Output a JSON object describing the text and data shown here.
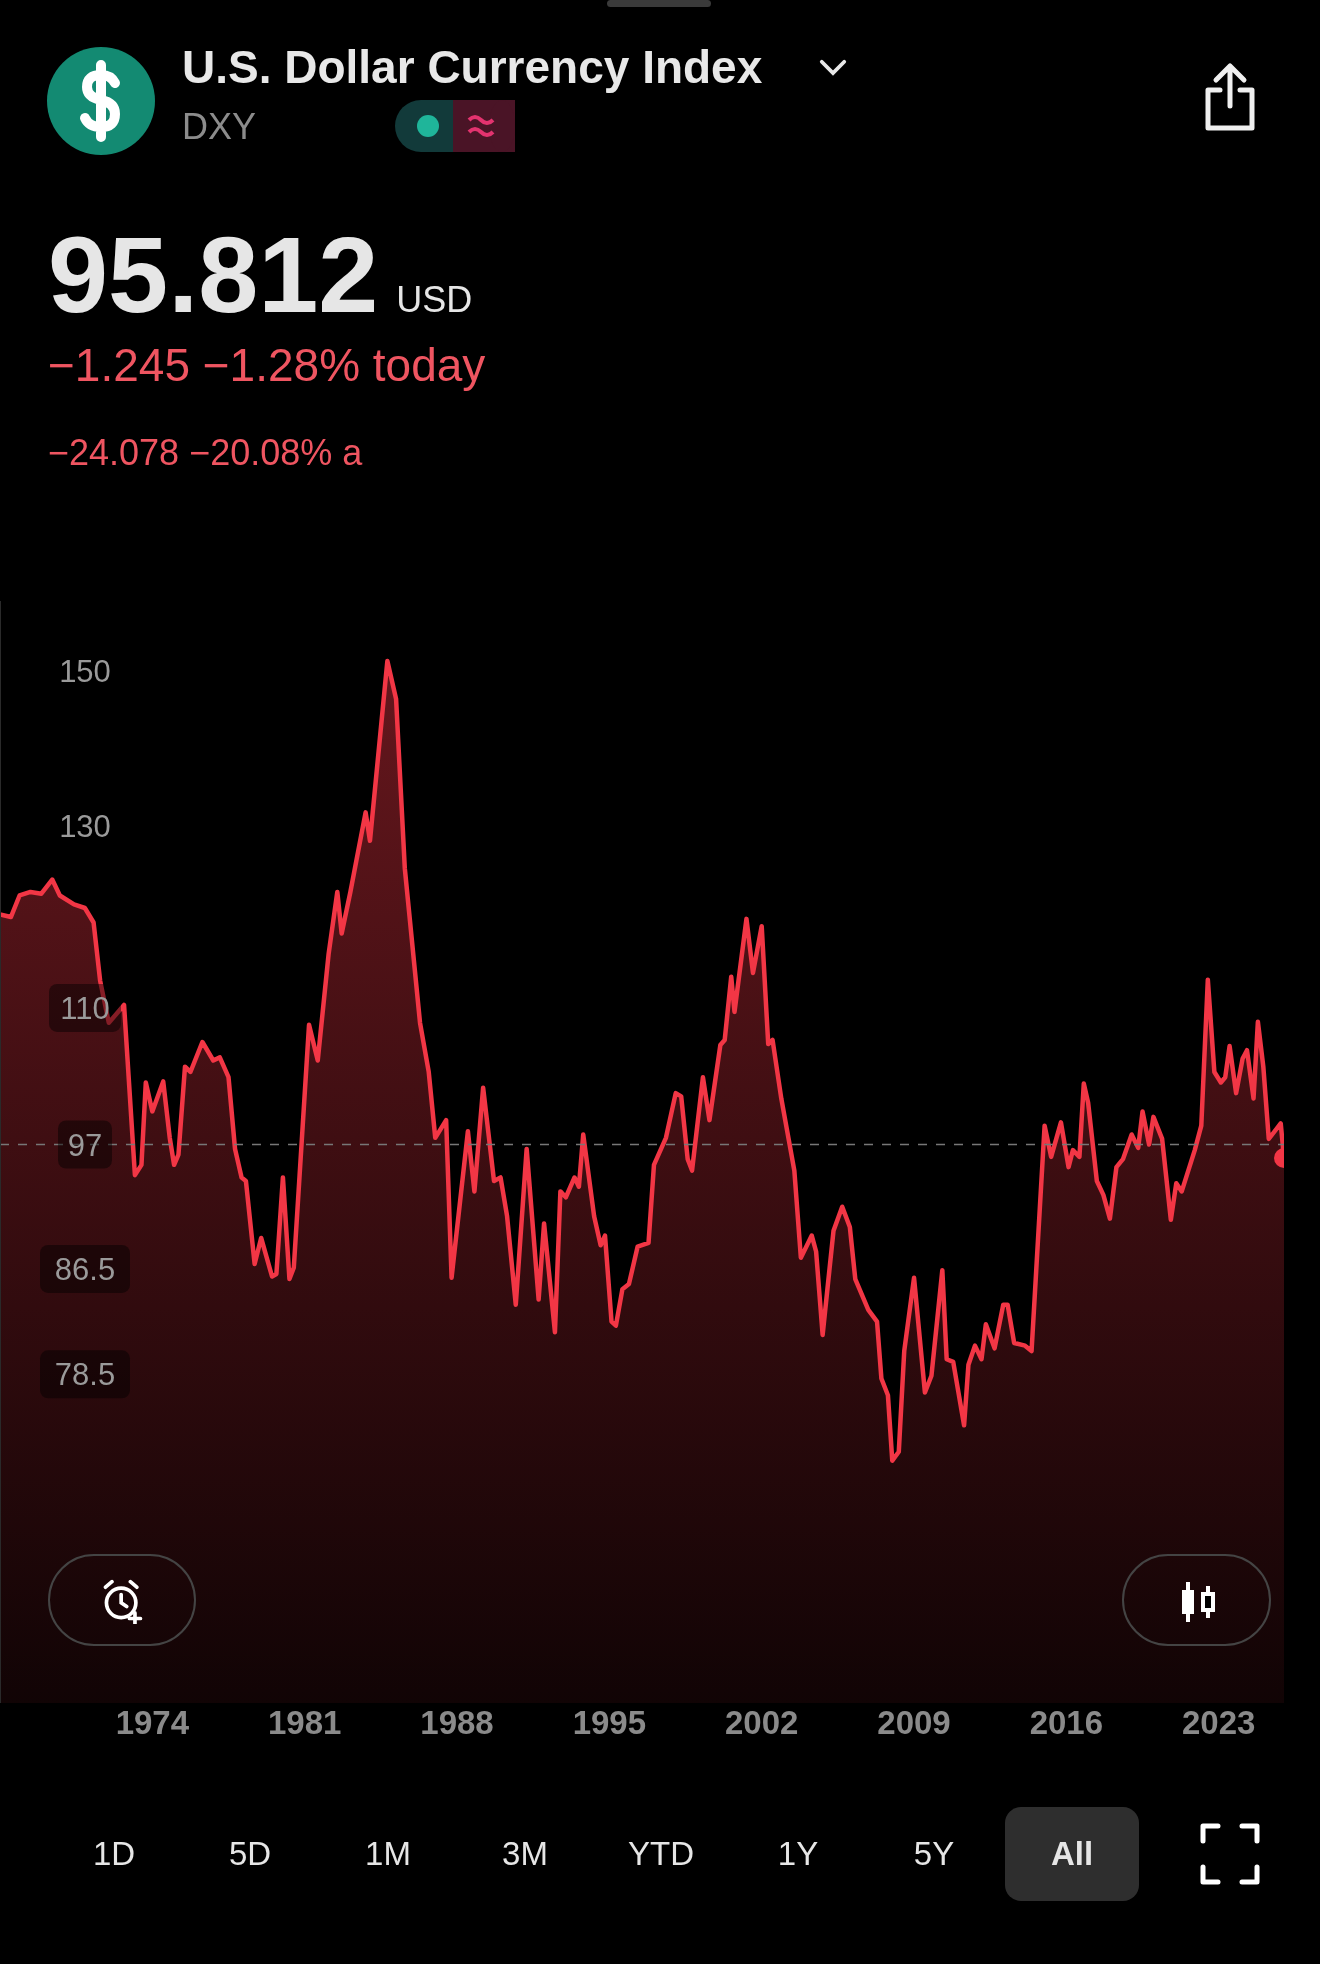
{
  "chart_data": {
    "type": "area",
    "title": "U.S. Dollar Currency Index",
    "subtitle": "DXY",
    "annotations": [
      "95.812",
      "USD",
      "−1.245 −1.28% today",
      "−24.078 −20.08% a",
      "1D",
      "5D",
      "1M",
      "3M",
      "YTD",
      "1Y",
      "5Y",
      "All"
    ],
    "x": [
      1967.0,
      1967.5,
      1967.9,
      1968.4,
      1968.9,
      1969.4,
      1969.75,
      1970.4,
      1970.9,
      1971.3,
      1971.6,
      1972.0,
      1972.7,
      1973.2,
      1973.5,
      1973.7,
      1974.0,
      1974.5,
      1974.8,
      1975.0,
      1975.2,
      1975.5,
      1975.75,
      1976.3,
      1976.8,
      1977.1,
      1977.5,
      1977.8,
      1978.1,
      1978.3,
      1978.7,
      1979.0,
      1979.5,
      1979.7,
      1980.0,
      1980.3,
      1980.5,
      1981.2,
      1981.6,
      1982.1,
      1982.5,
      1982.7,
      1983.1,
      1983.8,
      1984.0,
      1984.8,
      1985.2,
      1985.6,
      1986.3,
      1986.7,
      1987.0,
      1987.5,
      1987.75,
      1988.5,
      1988.8,
      1989.2,
      1989.7,
      1990.0,
      1990.3,
      1990.7,
      1991.2,
      1991.75,
      1992.0,
      1992.5,
      1992.75,
      1993.0,
      1993.4,
      1993.6,
      1993.8,
      1994.3,
      1994.6,
      1994.8,
      1995.1,
      1995.3,
      1995.6,
      1995.9,
      1996.3,
      1996.8,
      1997.05,
      1997.6,
      1998.05,
      1998.3,
      1998.6,
      1998.8,
      1999.3,
      1999.6,
      2000.1,
      2000.3,
      2000.6,
      2000.75,
      2001.3,
      2001.6,
      2002.0,
      2002.3,
      2002.5,
      2002.9,
      2003.5,
      2003.8,
      2004.3,
      2004.5,
      2004.8,
      2005.3,
      2005.7,
      2006.05,
      2006.3,
      2006.9,
      2007.3,
      2007.5,
      2007.8,
      2008.0,
      2008.3,
      2008.55,
      2009.0,
      2009.5,
      2009.8,
      2010.3,
      2010.5,
      2010.8,
      2011.3,
      2011.5,
      2011.8,
      2012.1,
      2012.3,
      2012.7,
      2013.1,
      2013.3,
      2013.6,
      2014.1,
      2014.4,
      2015.0,
      2015.3,
      2015.75,
      2016.1,
      2016.3,
      2016.6,
      2016.8,
      2017.0,
      2017.4,
      2017.7,
      2018.0,
      2018.3,
      2018.6,
      2019.0,
      2019.3,
      2019.5,
      2019.8,
      2020.0,
      2020.4,
      2020.8,
      2021.05,
      2021.3,
      2021.9,
      2022.2,
      2022.5,
      2022.8,
      2023.1,
      2023.3,
      2023.5,
      2023.8,
      2024.1,
      2024.3,
      2024.6,
      2024.8,
      2025.05,
      2025.3,
      2025.85,
      2026.0
    ],
    "series": [
      {
        "color": "#f23645",
        "values": [
          119.9,
          119.6,
          122,
          122.4,
          122.2,
          123.8,
          122,
          121,
          120.6,
          119,
          112.8,
          108.5,
          110.3,
          94.3,
          95.2,
          102.7,
          100,
          102.8,
          97.6,
          95.2,
          96.1,
          104.2,
          103.7,
          106.6,
          104.8,
          105.1,
          103.2,
          96.6,
          94.1,
          93.8,
          86.9,
          89,
          85.9,
          86.1,
          94.1,
          85.7,
          86.6,
          108.3,
          104.8,
          115.6,
          122.4,
          117.8,
          122.4,
          131.7,
          128.3,
          151.4,
          146.2,
          125.1,
          108.5,
          103.7,
          97.6,
          99.2,
          85.8,
          98.2,
          92.9,
          102.2,
          93.8,
          94.1,
          90.8,
          83.7,
          96.6,
          84.1,
          90.2,
          81.6,
          92.9,
          92.4,
          94.1,
          93.3,
          97.9,
          90.8,
          88.4,
          89.2,
          82.4,
          82.1,
          84.9,
          85.3,
          88.3,
          88.6,
          95.2,
          97.6,
          101.7,
          101.4,
          95.7,
          94.7,
          103.2,
          99.2,
          106.3,
          106.8,
          113.2,
          109.6,
          119.4,
          113.6,
          118.6,
          106.4,
          106.8,
          101.2,
          94.7,
          87.4,
          89.2,
          87.9,
          81.4,
          89.6,
          91.6,
          89.9,
          85.7,
          83.3,
          82.4,
          78.2,
          77.0,
          72.5,
          73.1,
          80.2,
          85.8,
          77.2,
          78.4,
          86.4,
          79.6,
          79.4,
          74.9,
          79.2,
          80.6,
          79.6,
          82.2,
          80.4,
          83.7,
          83.7,
          80.8,
          80.6,
          80.2,
          98.7,
          95.9,
          99,
          95,
          96.5,
          95.9,
          102.6,
          100.8,
          93.8,
          92.6,
          90.6,
          95,
          95.7,
          97.9,
          96.7,
          100,
          97,
          99.5,
          97.5,
          90.5,
          93.6,
          92.9,
          96.5,
          98.7,
          112.9,
          103.7,
          102.7,
          103.2,
          106.2,
          101.7,
          105,
          105.8,
          101.2,
          108.6,
          104.2,
          97.5,
          98.9,
          95.8
        ]
      }
    ],
    "xlim": [
      1967,
      2026
    ],
    "xticks": [
      1974,
      1981,
      1988,
      1995,
      2002,
      2009,
      2016,
      2023
    ],
    "ylim": [
      58,
      160
    ],
    "yticks": [
      150,
      130,
      110,
      97,
      86.5,
      78.5
    ],
    "log": true,
    "grid": false,
    "legend": false,
    "ref_lines": [
      {
        "axis": "y",
        "value": 97,
        "line_style": "dashed",
        "color": "#777777"
      }
    ]
  }
}
